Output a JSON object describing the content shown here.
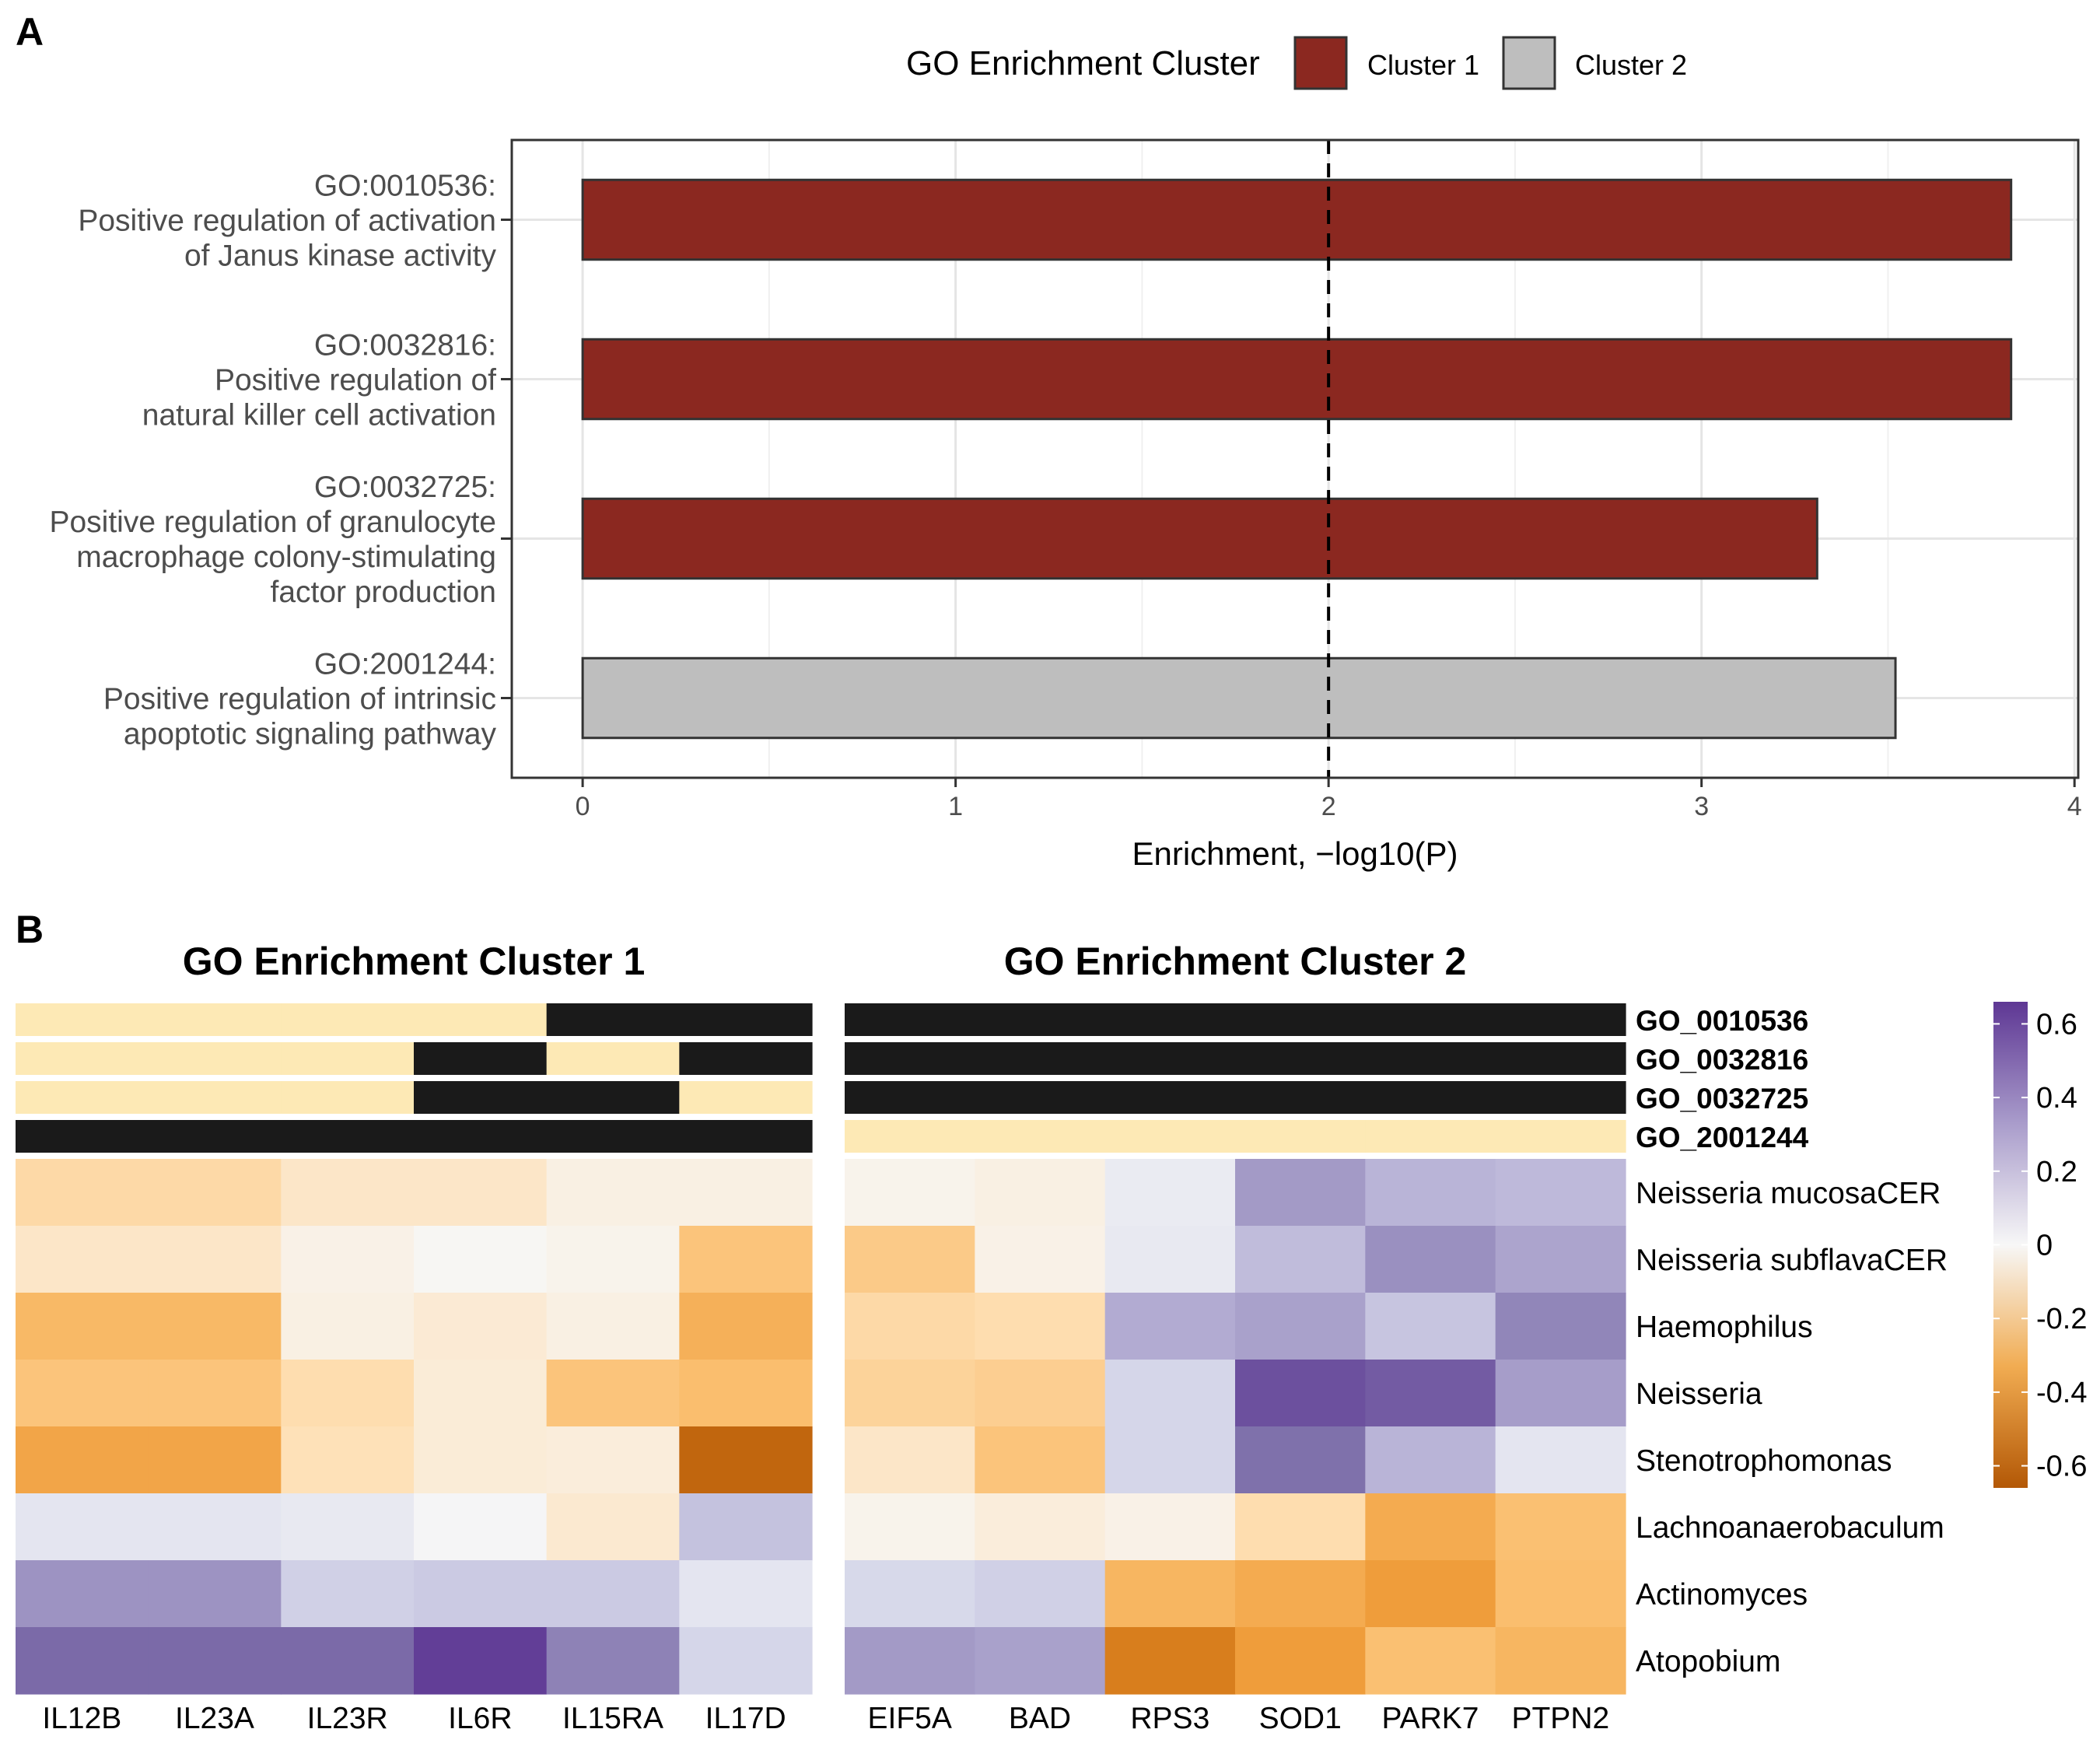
{
  "chart_data": [
    {
      "panel": "A",
      "type": "bar",
      "orientation": "horizontal",
      "categories": [
        [
          "GO:0010536:",
          "Positive regulation of activation",
          "of Janus kinase activity"
        ],
        [
          "GO:0032816:",
          "Positive regulation of",
          "natural killer cell activation"
        ],
        [
          "GO:0032725:",
          "Positive regulation of granulocyte",
          "macrophage colony-stimulating",
          "factor production"
        ],
        [
          "GO:2001244:",
          "Positive regulation of intrinsic",
          "apoptotic signaling pathway"
        ]
      ],
      "values": [
        3.83,
        3.83,
        3.31,
        3.52
      ],
      "groups": [
        "Cluster 1",
        "Cluster 1",
        "Cluster 1",
        "Cluster 2"
      ],
      "xlabel": "Enrichment, −log10(P)",
      "xlim": [
        -0.19,
        4.01
      ],
      "xticks": [
        0,
        1,
        2,
        3,
        4
      ],
      "reference_line": 2,
      "legend": {
        "title": "GO Enrichment Cluster",
        "placement": "top",
        "items": [
          {
            "label": "Cluster 1",
            "color": "#8b2820"
          },
          {
            "label": "Cluster 2",
            "color": "#bebebe"
          }
        ]
      },
      "grid": true
    },
    {
      "panel": "B",
      "type": "heatmap",
      "panels": [
        {
          "title": "GO Enrichment Cluster 1",
          "genes": [
            "IL12B",
            "IL23A",
            "IL23R",
            "IL6R",
            "IL15RA",
            "IL17D"
          ],
          "go_membership": [
            [
              0,
              0,
              0,
              0,
              1,
              1
            ],
            [
              0,
              0,
              0,
              1,
              0,
              1
            ],
            [
              0,
              0,
              0,
              1,
              1,
              0
            ],
            [
              1,
              1,
              1,
              1,
              1,
              1
            ]
          ],
          "values": [
            [
              -0.2,
              -0.2,
              -0.12,
              -0.12,
              -0.05,
              -0.05
            ],
            [
              -0.12,
              -0.12,
              -0.04,
              -0.01,
              -0.03,
              -0.3
            ],
            [
              -0.35,
              -0.35,
              -0.05,
              -0.09,
              -0.05,
              -0.38
            ],
            [
              -0.3,
              -0.3,
              -0.18,
              -0.08,
              -0.3,
              -0.33
            ],
            [
              -0.42,
              -0.42,
              -0.16,
              -0.08,
              -0.07,
              -0.62
            ],
            [
              0.1,
              0.1,
              0.08,
              0.01,
              -0.1,
              0.25
            ],
            [
              0.4,
              0.4,
              0.2,
              0.22,
              0.22,
              0.1
            ],
            [
              0.52,
              0.52,
              0.52,
              0.64,
              0.45,
              0.18
            ]
          ]
        },
        {
          "title": "GO Enrichment Cluster 2",
          "genes": [
            "EIF5A",
            "BAD",
            "RPS3",
            "SOD1",
            "PARK7",
            "PTPN2"
          ],
          "go_membership": [
            [
              1,
              1,
              1,
              1,
              1,
              1
            ],
            [
              1,
              1,
              1,
              1,
              1,
              1
            ],
            [
              1,
              1,
              1,
              1,
              1,
              1
            ],
            [
              0,
              0,
              0,
              0,
              0,
              0
            ]
          ],
          "values": [
            [
              -0.03,
              -0.05,
              0.07,
              0.38,
              0.3,
              0.28
            ],
            [
              -0.27,
              -0.04,
              0.08,
              0.27,
              0.41,
              0.35
            ],
            [
              -0.2,
              -0.18,
              0.33,
              0.36,
              0.24,
              0.44
            ],
            [
              -0.23,
              -0.25,
              0.18,
              0.59,
              0.56,
              0.37
            ],
            [
              -0.12,
              -0.3,
              0.18,
              0.5,
              0.3,
              0.1
            ],
            [
              -0.03,
              -0.07,
              -0.04,
              -0.18,
              -0.4,
              -0.32
            ],
            [
              0.17,
              0.2,
              -0.36,
              -0.4,
              -0.45,
              -0.33
            ],
            [
              0.38,
              0.36,
              -0.55,
              -0.45,
              -0.32,
              -0.36
            ]
          ]
        }
      ],
      "go_rows": [
        "GO_0010536",
        "GO_0032816",
        "GO_0032725",
        "GO_2001244"
      ],
      "taxa": [
        "Neisseria mucosaCER",
        "Neisseria subflavaCER",
        "Haemophilus",
        "Neisseria",
        "Stenotrophomonas",
        "Lachnoanaerobaculum",
        "Actinomyces",
        "Atopobium"
      ],
      "colorbar": {
        "ticks": [
          "0.6",
          "0.4",
          "0.2",
          "0",
          "-0.2",
          "-0.4",
          "-0.6"
        ],
        "range": [
          -0.66,
          0.66
        ],
        "high_color": "#5e3794",
        "mid_color": "#f7f7f7",
        "low_color": "#b35806"
      },
      "member_color": "#1a1a1a",
      "nonmember_color": "#fde9b5"
    }
  ],
  "panel_labels": [
    "A",
    "B"
  ]
}
